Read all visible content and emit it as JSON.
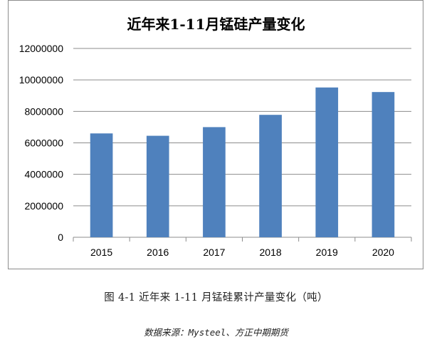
{
  "chart_data": {
    "type": "bar",
    "title": "近年来1-11月锰硅产量变化",
    "categories": [
      "2015",
      "2016",
      "2017",
      "2018",
      "2019",
      "2020"
    ],
    "values": [
      6600000,
      6450000,
      7000000,
      7780000,
      9520000,
      9230000
    ],
    "ylim": [
      0,
      12000000
    ],
    "yticks": [
      "0",
      "2000000",
      "4000000",
      "6000000",
      "8000000",
      "10000000",
      "12000000"
    ],
    "grid": true,
    "legend": "none",
    "bar_color": "#4F81BD"
  },
  "caption": "图 4-1 近年来 1-11 月锰硅累计产量变化（吨）",
  "source": "数据来源：Mysteel、方正中期期货"
}
